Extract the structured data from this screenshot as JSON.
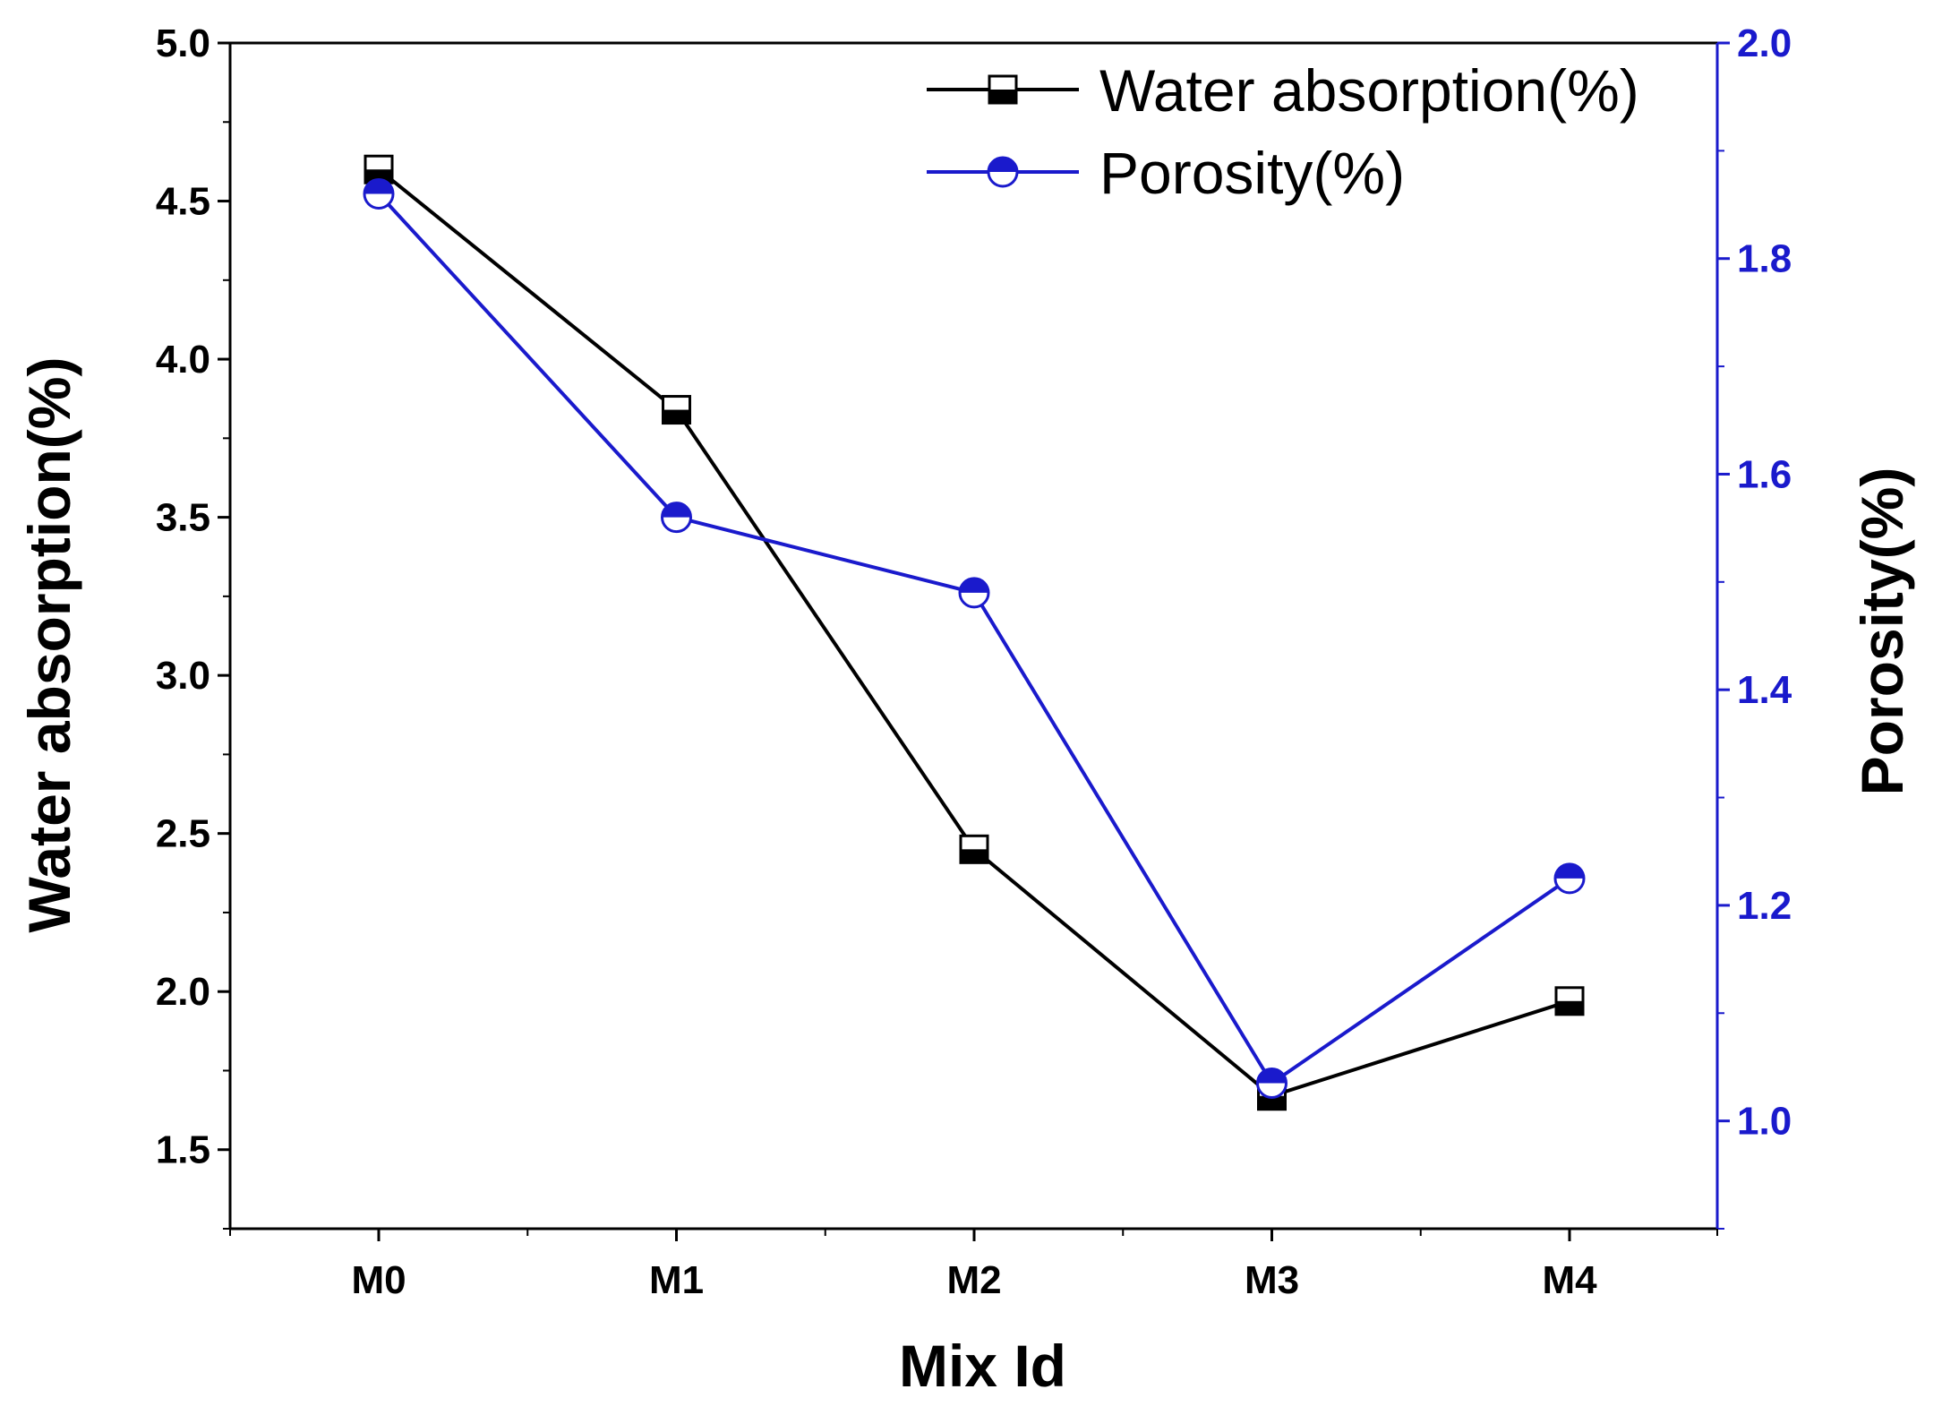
{
  "chart_data": {
    "type": "line",
    "categories": [
      "M0",
      "M1",
      "M2",
      "M3",
      "M4"
    ],
    "xlabel": "Mix Id",
    "left_axis": {
      "label": "Water absorption(%)",
      "range": [
        1.25,
        5.0
      ],
      "ticks": [
        "1.5",
        "2.0",
        "2.5",
        "3.0",
        "3.5",
        "4.0",
        "4.5",
        "5.0"
      ],
      "color": "#000000"
    },
    "right_axis": {
      "label": "Porosity(%)",
      "range": [
        0.9,
        2.0
      ],
      "ticks": [
        "1.0",
        "1.2",
        "1.4",
        "1.6",
        "1.8",
        "2.0"
      ],
      "color": "#1a1acc"
    },
    "series": [
      {
        "name": "Water absorption(%)",
        "axis": "left",
        "values": [
          4.6,
          3.84,
          2.45,
          1.67,
          1.97
        ],
        "color": "#000000",
        "marker": "half-filled-square"
      },
      {
        "name": "Porosity(%)",
        "axis": "right",
        "values": [
          1.86,
          1.56,
          1.49,
          1.035,
          1.225
        ],
        "color": "#1a1acc",
        "marker": "half-filled-circle"
      }
    ],
    "legend_position": "top-right"
  }
}
